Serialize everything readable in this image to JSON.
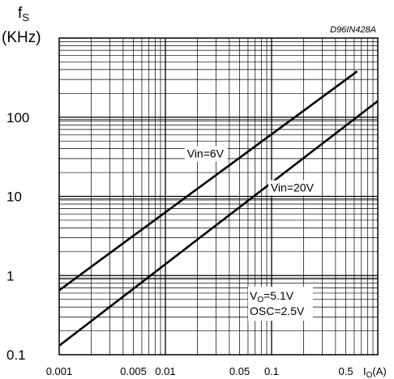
{
  "chart_data": {
    "type": "line",
    "ref_code": "D96IN428A",
    "y_label": "f",
    "y_label_sub": "S",
    "y_unit": "(KHz)",
    "x_label": "I",
    "x_label_sub": "O",
    "x_unit": "(A)",
    "x_scale": "log",
    "y_scale": "log",
    "xlim": [
      0.001,
      1
    ],
    "ylim": [
      0.1,
      1000
    ],
    "grid": true,
    "y_ticks": [
      {
        "value": 100,
        "label": "100"
      },
      {
        "value": 10,
        "label": "10"
      },
      {
        "value": 1,
        "label": "1"
      },
      {
        "value": 0.1,
        "label": "0.1"
      }
    ],
    "x_ticks": [
      {
        "value": 0.001,
        "label": "0.001"
      },
      {
        "value": 0.005,
        "label": "0.005"
      },
      {
        "value": 0.01,
        "label": "0.01"
      },
      {
        "value": 0.05,
        "label": "0.05"
      },
      {
        "value": 0.1,
        "label": "0.1"
      },
      {
        "value": 0.5,
        "label": "0.5"
      }
    ],
    "series": [
      {
        "name": "Vin=6V",
        "x": [
          0.001,
          0.64
        ],
        "y": [
          0.65,
          380
        ]
      },
      {
        "name": "Vin=20V",
        "x": [
          0.001,
          1.0
        ],
        "y": [
          0.13,
          160
        ]
      }
    ],
    "annotations": [
      {
        "name": "vo-label",
        "main": "V",
        "sub": "O",
        "rest": "=5.1V"
      },
      {
        "name": "osc-label",
        "text": "OSC=2.5V"
      }
    ]
  }
}
